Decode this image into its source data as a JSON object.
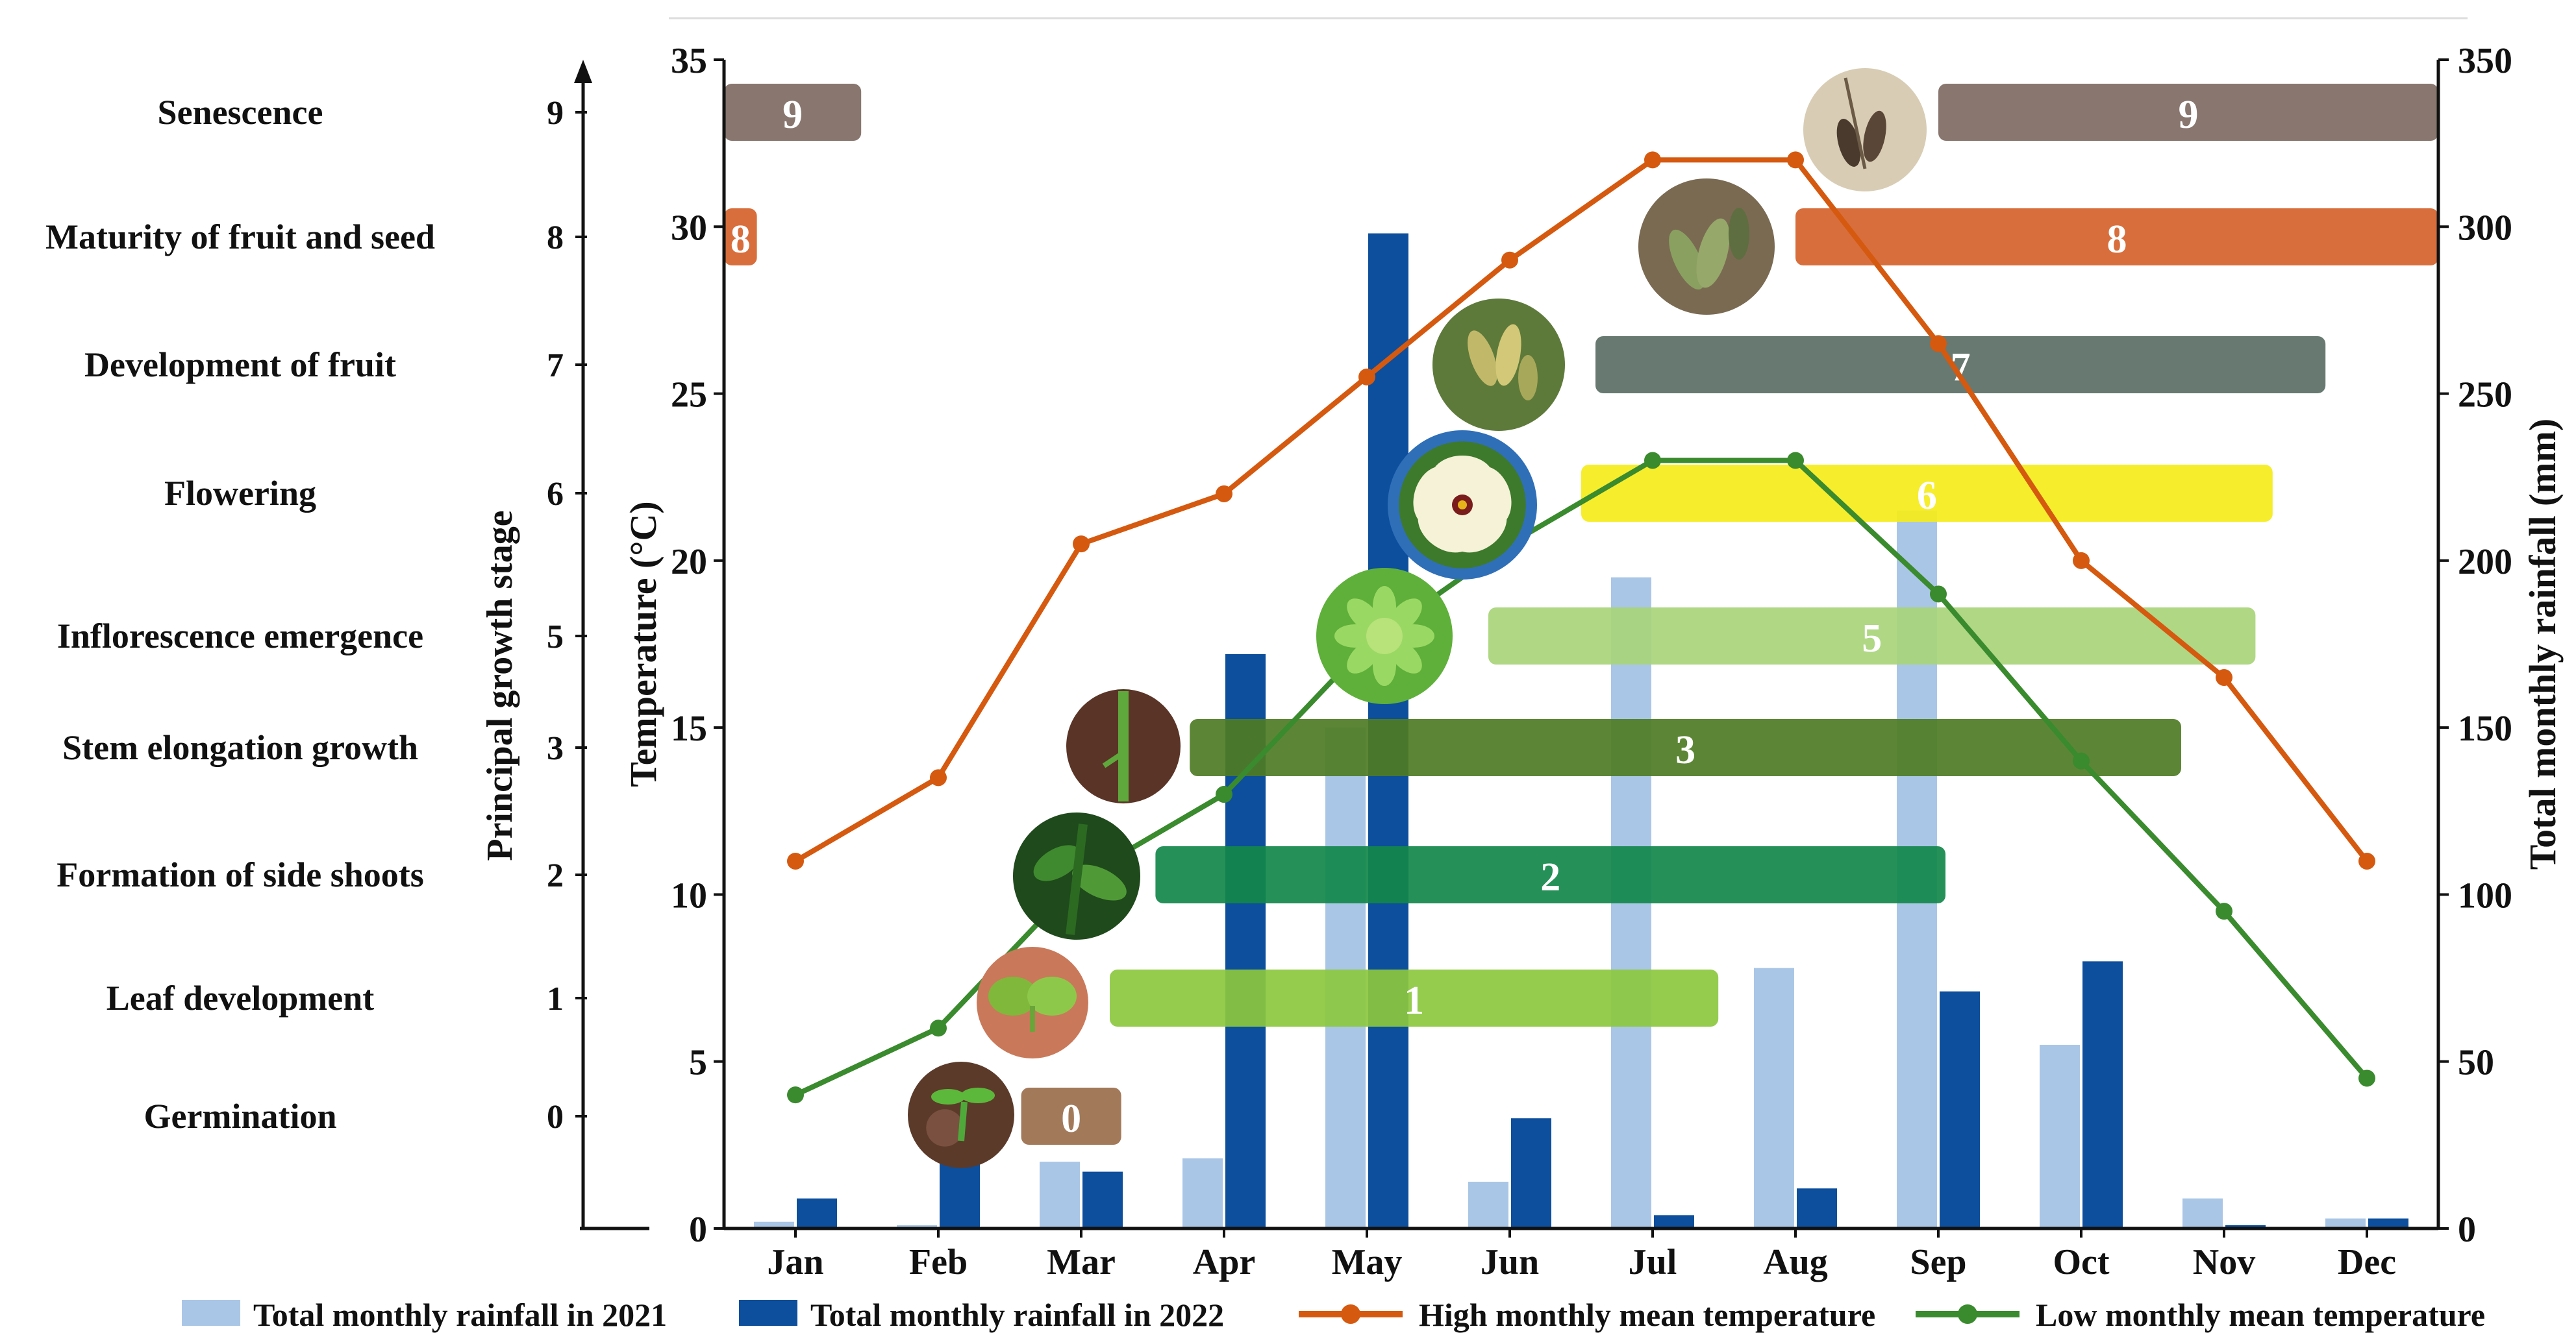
{
  "colors": {
    "rain2021": "#aac6e6",
    "rain2022": "#0d4f9c",
    "high_temp": "#d5590f",
    "low_temp": "#3a8a2e",
    "axis": "#111111"
  },
  "chart_data": {
    "type": "bar",
    "categories": [
      "Jan",
      "Feb",
      "Mar",
      "Apr",
      "May",
      "Jun",
      "Jul",
      "Aug",
      "Sep",
      "Oct",
      "Nov",
      "Dec"
    ],
    "left_axis": {
      "label": "Temperature (°C)",
      "ylim": [
        0,
        35
      ],
      "ticks": [
        "0",
        "5",
        "10",
        "15",
        "20",
        "25",
        "30",
        "35"
      ]
    },
    "right_axis": {
      "label": "Total monthly rainfall (mm)",
      "ylim": [
        0,
        350
      ],
      "ticks": [
        "0",
        "50",
        "100",
        "150",
        "200",
        "250",
        "300",
        "350"
      ]
    },
    "stage_axis": {
      "label": "Principal growth stage",
      "ticks": [
        "0",
        "1",
        "2",
        "3",
        "5",
        "6",
        "7",
        "8",
        "9"
      ],
      "stage_names": [
        "Germination",
        "Leaf development",
        "Formation of side shoots",
        "Stem elongation growth",
        "Inflorescence emergence",
        "Flowering",
        "Development of fruit",
        "Maturity of fruit and seed",
        "Senescence"
      ]
    },
    "series": [
      {
        "name": "Total monthly rainfall in 2021",
        "kind": "bar",
        "axis": "right",
        "values": [
          2,
          1,
          20,
          21,
          150,
          14,
          195,
          78,
          215,
          55,
          9,
          3
        ]
      },
      {
        "name": "Total monthly rainfall in 2022",
        "kind": "bar",
        "axis": "right",
        "values": [
          9,
          20,
          17,
          172,
          298,
          33,
          4,
          12,
          71,
          80,
          1,
          3
        ]
      },
      {
        "name": "High monthly mean temperature",
        "kind": "line",
        "axis": "left",
        "values": [
          11.0,
          13.5,
          20.5,
          22.0,
          25.5,
          29.0,
          32.0,
          32.0,
          26.5,
          20.0,
          16.5,
          11.0
        ]
      },
      {
        "name": "Low monthly mean temperature",
        "kind": "line",
        "axis": "left",
        "values": [
          4.0,
          6.0,
          10.5,
          13.0,
          17.5,
          20.5,
          23.0,
          23.0,
          19.0,
          14.0,
          9.5,
          4.5
        ]
      }
    ],
    "stage_bars": [
      {
        "label": "0",
        "stage": "Germination",
        "start_month": 2.58,
        "end_month": 3.28,
        "color": "#9a6e4b",
        "photo": "seedling-photo"
      },
      {
        "label": "1",
        "stage": "Leaf development",
        "start_month": 3.2,
        "end_month": 7.46,
        "color": "#8cc83f",
        "photo": "cotyledon-photo"
      },
      {
        "label": "2",
        "stage": "Formation of side shoots",
        "start_month": 3.52,
        "end_month": 9.05,
        "color": "#12874a",
        "photo": "side-shoot-photo"
      },
      {
        "label": "3",
        "stage": "Stem elongation growth",
        "start_month": 3.76,
        "end_month": 10.7,
        "color": "#4e7c24",
        "photo": "stem-photo"
      },
      {
        "label": "5",
        "stage": "Inflorescence emergence",
        "start_month": 5.85,
        "end_month": 11.22,
        "color": "#a8d47a",
        "photo": "inflorescence-photo"
      },
      {
        "label": "6",
        "stage": "Flowering",
        "start_month": 6.5,
        "end_month": 11.34,
        "color": "#f5eb1a",
        "photo": "flower-photo"
      },
      {
        "label": "7",
        "stage": "Development of fruit",
        "start_month": 6.6,
        "end_month": 11.71,
        "color": "#5a6e65",
        "photo": "fruit-photo"
      },
      {
        "label": "8",
        "stage": "Maturity of fruit and seed",
        "start_month": 8.0,
        "end_month": 12.5,
        "color": "#d5622a",
        "photo": "mature-pod-photo"
      },
      {
        "label": "8",
        "stage": "Maturity of fruit and seed",
        "start_month": 0.5,
        "end_month": 0.73,
        "color": "#d5622a",
        "photo": ""
      },
      {
        "label": "9",
        "stage": "Senescence",
        "start_month": 0.5,
        "end_month": 1.46,
        "color": "#7e6a63",
        "photo": ""
      },
      {
        "label": "9",
        "stage": "Senescence",
        "start_month": 9.0,
        "end_month": 12.5,
        "color": "#7e6a63",
        "photo": "dry-pod-photo"
      }
    ],
    "legend": [
      "Total monthly rainfall in 2021",
      "Total monthly rainfall in 2022",
      "High monthly mean temperature",
      "Low monthly mean temperature"
    ]
  }
}
